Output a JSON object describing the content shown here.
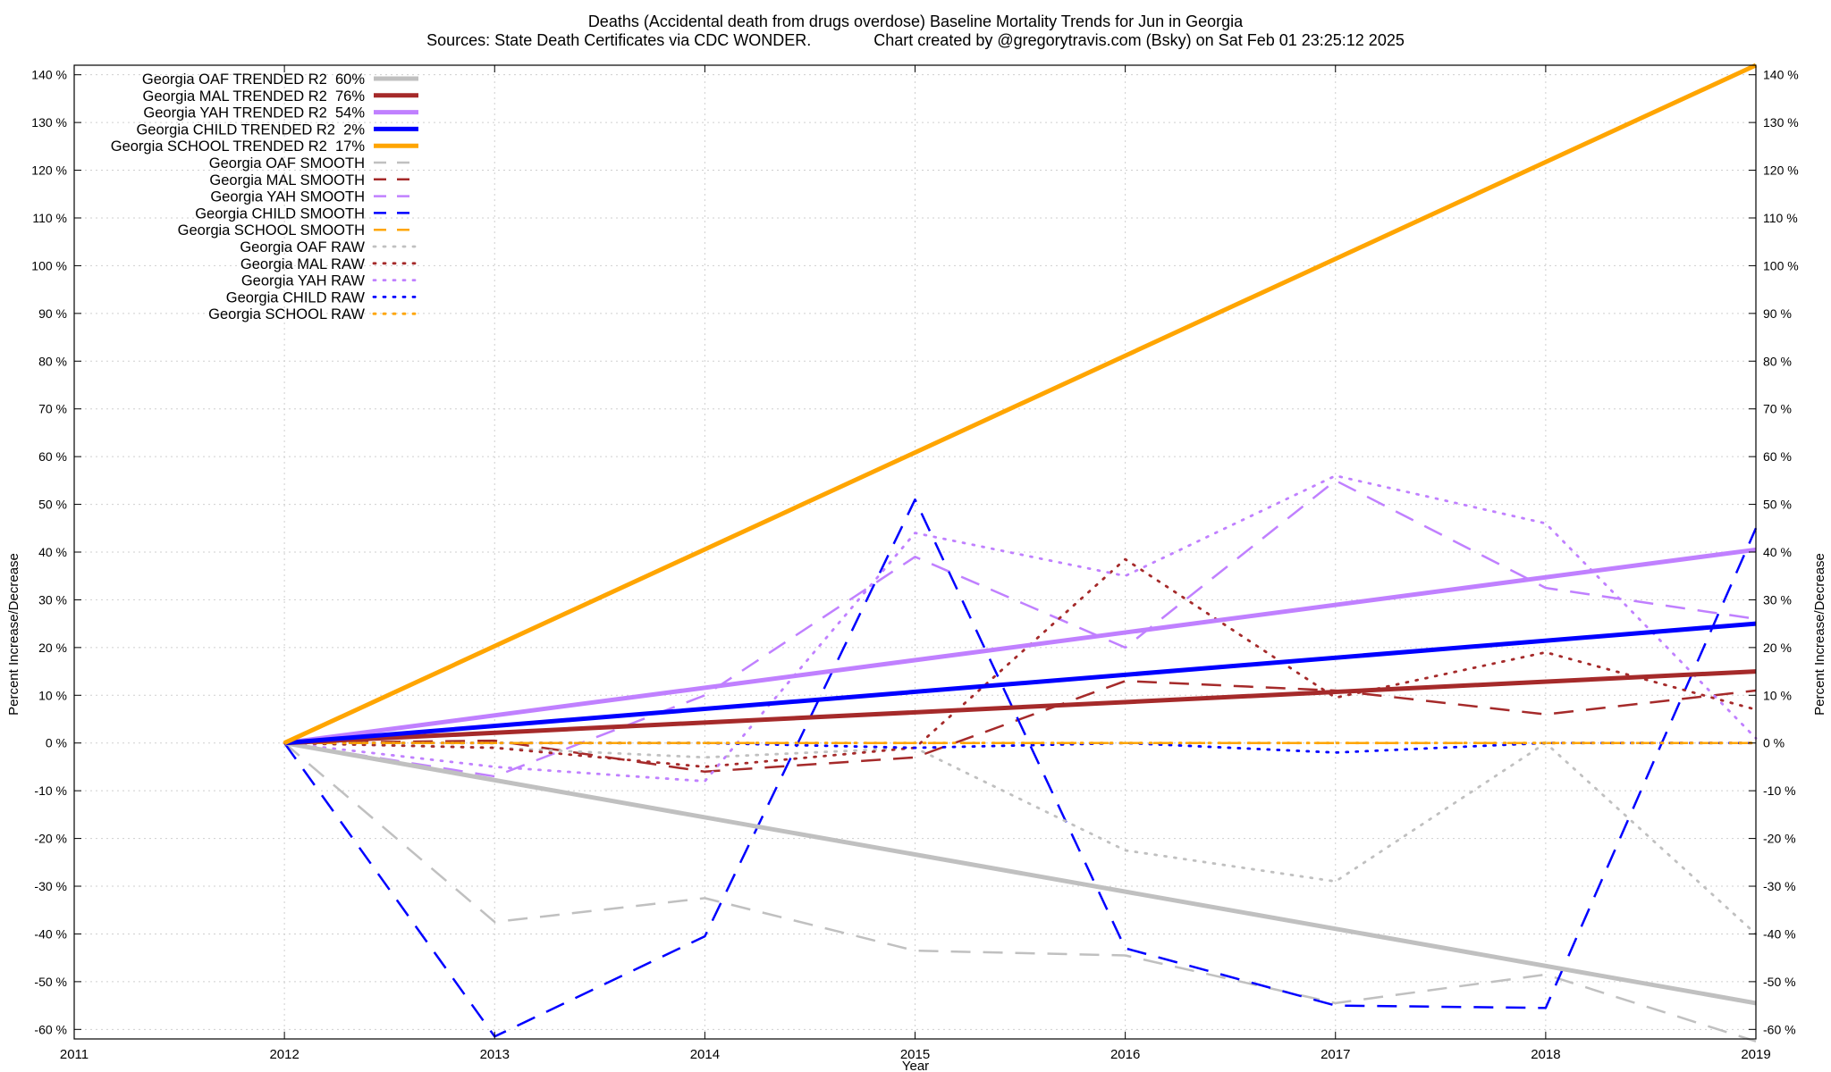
{
  "chart_data": {
    "type": "line",
    "title": "Deaths (Accidental death from drugs overdose)  Baseline Mortality Trends for Jun in Georgia",
    "subtitle": "Sources: State Death Certificates via CDC WONDER.              Chart created by @gregorytravis.com (Bsky) on Sat Feb 01 23:25:12 2025",
    "xlabel": "Year",
    "ylabel": "Percent Increase/Decrease",
    "xlim": [
      2011,
      2019
    ],
    "ylim": [
      -62,
      142
    ],
    "x_ticks": [
      2011,
      2012,
      2013,
      2014,
      2015,
      2016,
      2017,
      2018,
      2019
    ],
    "y_ticks": [
      -60,
      -50,
      -40,
      -30,
      -20,
      -10,
      0,
      10,
      20,
      30,
      40,
      50,
      60,
      70,
      80,
      90,
      100,
      110,
      120,
      130,
      140
    ],
    "y_tick_suffix": " %",
    "grid": true,
    "legend_position": "top-left",
    "series": [
      {
        "name": "Georgia OAF TRENDED R2  60%",
        "style": "trend",
        "color": "#c0c0c0",
        "x": [
          2012,
          2019
        ],
        "values": [
          0,
          -54.5
        ]
      },
      {
        "name": "Georgia MAL TRENDED R2  76%",
        "style": "trend",
        "color": "#a52a2a",
        "x": [
          2012,
          2019
        ],
        "values": [
          0,
          15
        ]
      },
      {
        "name": "Georgia YAH TRENDED R2  54%",
        "style": "trend",
        "color": "#c080ff",
        "x": [
          2012,
          2019
        ],
        "values": [
          0,
          40.5
        ]
      },
      {
        "name": "Georgia CHILD TRENDED R2  2%",
        "style": "trend",
        "color": "#0000ff",
        "x": [
          2012,
          2019
        ],
        "values": [
          0,
          25
        ]
      },
      {
        "name": "Georgia SCHOOL TRENDED R2  17%",
        "style": "trend",
        "color": "#ffa500",
        "x": [
          2012,
          2019
        ],
        "values": [
          0,
          142
        ]
      },
      {
        "name": "Georgia OAF SMOOTH",
        "style": "smooth",
        "color": "#c0c0c0",
        "x": [
          2012,
          2013,
          2014,
          2015,
          2016,
          2017,
          2018,
          2019
        ],
        "values": [
          0,
          -37.5,
          -32.5,
          -43.5,
          -44.5,
          -54.5,
          -48.5,
          -62.5
        ]
      },
      {
        "name": "Georgia MAL SMOOTH",
        "style": "smooth",
        "color": "#a52a2a",
        "x": [
          2012,
          2013,
          2014,
          2015,
          2016,
          2017,
          2018,
          2019
        ],
        "values": [
          0,
          0.5,
          -6,
          -3,
          13,
          11,
          6,
          11
        ]
      },
      {
        "name": "Georgia YAH SMOOTH",
        "style": "smooth",
        "color": "#c080ff",
        "x": [
          2012,
          2013,
          2014,
          2015,
          2016,
          2017,
          2018,
          2019
        ],
        "values": [
          0,
          -7,
          10,
          39,
          20,
          55,
          32.5,
          26
        ]
      },
      {
        "name": "Georgia CHILD SMOOTH",
        "style": "smooth",
        "color": "#0000ff",
        "x": [
          2012,
          2013,
          2014,
          2015,
          2016,
          2017,
          2018,
          2019
        ],
        "values": [
          0,
          -61.5,
          -40.5,
          51,
          -43,
          -55,
          -55.5,
          45
        ]
      },
      {
        "name": "Georgia SCHOOL SMOOTH",
        "style": "smooth",
        "color": "#ffa500",
        "x": [
          2012,
          2013,
          2014,
          2015,
          2016,
          2017,
          2018,
          2019
        ],
        "values": [
          0,
          0,
          0,
          0,
          0,
          0,
          0,
          0
        ]
      },
      {
        "name": "Georgia OAF RAW",
        "style": "raw",
        "color": "#c0c0c0",
        "x": [
          2012,
          2013,
          2014,
          2015,
          2016,
          2017,
          2018,
          2019
        ],
        "values": [
          0,
          -1,
          -3,
          -1,
          -22.5,
          -29,
          0,
          -40
        ]
      },
      {
        "name": "Georgia MAL RAW",
        "style": "raw",
        "color": "#a52a2a",
        "x": [
          2012,
          2013,
          2014,
          2015,
          2016,
          2017,
          2018,
          2019
        ],
        "values": [
          0,
          -1,
          -5,
          -1,
          38.5,
          9.5,
          19,
          7
        ]
      },
      {
        "name": "Georgia YAH RAW",
        "style": "raw",
        "color": "#c080ff",
        "x": [
          2012,
          2013,
          2014,
          2015,
          2016,
          2017,
          2018,
          2019
        ],
        "values": [
          0,
          -5,
          -8,
          44,
          35,
          56,
          46,
          1
        ]
      },
      {
        "name": "Georgia CHILD RAW",
        "style": "raw",
        "color": "#0000ff",
        "x": [
          2012,
          2013,
          2014,
          2015,
          2016,
          2017,
          2018,
          2019
        ],
        "values": [
          0,
          0,
          0,
          -1,
          0,
          -2,
          0,
          0
        ]
      },
      {
        "name": "Georgia SCHOOL RAW",
        "style": "raw",
        "color": "#ffa500",
        "x": [
          2012,
          2013,
          2014,
          2015,
          2016,
          2017,
          2018,
          2019
        ],
        "values": [
          0,
          0,
          0,
          0,
          0,
          0,
          0,
          0
        ]
      }
    ]
  }
}
